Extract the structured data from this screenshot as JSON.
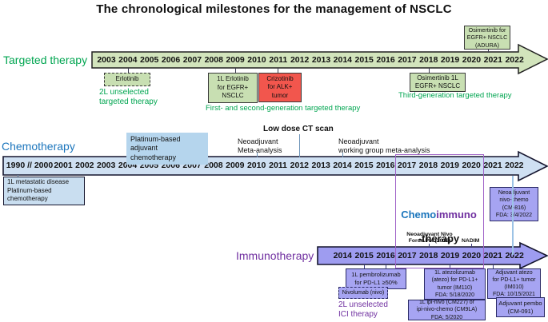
{
  "title": "The chronological milestones for the management of NSCLC",
  "colors": {
    "green_text": "#00a550",
    "green_arrow_fill": "#d2e4bc",
    "green_box_fill": "#c8dfb2",
    "red_box_fill": "#f2564d",
    "blue_text": "#1b75bc",
    "blue_arrow_fill": "#cfe0f2",
    "blue_highlight_fill": "#b5d5ed",
    "blue_box_fill": "#c9def0",
    "purple_text": "#7030a0",
    "purple_arrow_fill": "#9e9cf0",
    "purple_box_fill": "#a6a4f2",
    "purple_rect_border": "#a064c8",
    "navy_border": "#2b2b66",
    "lightblue_line": "#9dc3e6"
  },
  "targeted": {
    "label": "Targeted therapy",
    "years": [
      "2003",
      "2004",
      "2005",
      "2006",
      "2007",
      "2008",
      "2009",
      "2010",
      "2011",
      "2012",
      "2013",
      "2014",
      "2015",
      "2016",
      "2017",
      "2018",
      "2019",
      "2020",
      "2021",
      "2022"
    ],
    "erlotinib_box": "Erlotinib",
    "erlotinib_caption": "2L unselected\ntargeted therapy",
    "erlotinib_1l_box": "1L Erlotinib\nfor EGFR+\nNSCLC",
    "crizotinib_box": "Crizotinib\nfor ALK+\ntumor",
    "gen12_caption": "First- and second-generation targeted therapy",
    "osimertinib_1l_box": "Osimertinib 1L\nEGFR+ NSCLC",
    "gen3_caption": "Third-generation targeted therapy",
    "adura_box": "Osimertinib for\nEGFR+ NSCLC\n(ADURA)"
  },
  "chemo": {
    "label": "Chemotherapy",
    "early_years": "1990 // 2000",
    "years": [
      "2001",
      "2002",
      "2003",
      "2004",
      "2005",
      "2006",
      "2007",
      "2008",
      "2009",
      "2010",
      "2011",
      "2012",
      "2013",
      "2014",
      "2015",
      "2016",
      "2017",
      "2018",
      "2019",
      "2020",
      "2021",
      "2022"
    ],
    "metastatic_box": "1L metastatic disease\nPlatinum-based\nchemotherapy",
    "platinum_note": "Platinum-based\nadjuvant chemotherapy",
    "neoadjuvant_meta_note": "Neoadjuvant\nMeta-analysis",
    "low_dose_note": "Low dose CT scan",
    "working_group_note": "Neoadjuvant\nworking group meta-analysis"
  },
  "chemoimmuno": {
    "part1": "Chemo",
    "part2": "immuno",
    "part3": "-therapy",
    "forde_note": "Neoadjuvant Nivo\nForde PM  (2018)",
    "nadim_note": "NADIM",
    "nivo_chemo_box": "Neoadjuvant\nnivo-chemo\n(CM-816)\nFDA: 3/4/2022"
  },
  "immuno": {
    "label": "Immunotherapy",
    "years": [
      "2014",
      "2015",
      "2016",
      "2017",
      "2018",
      "2019",
      "2020",
      "2021",
      "2022"
    ],
    "pembro_box": "1L pembrolizumab\nfor PD-L1 ≥50%",
    "nivolumab_box": "Nivolumab (nivo)",
    "ici_caption": "2L unselected\nICI therapy",
    "atezo_box": "1L atezolizumab\n(atezo) for PD-L1+\ntumor (IM110)\nFDA: 5/18/2020",
    "ipi_nivo_box": "1L ipi-nivo (CM227) or\nipi-nivo-chemo (CM9LA)\nFDA: 5/2020",
    "adj_atezo_box": "Adjuvant atezo\nfor PD-L1+ tumor\n(IM010)\nFDA: 10/15/2021",
    "adj_pembo_box": "Adjuvant pembo\n(CM-091)"
  }
}
